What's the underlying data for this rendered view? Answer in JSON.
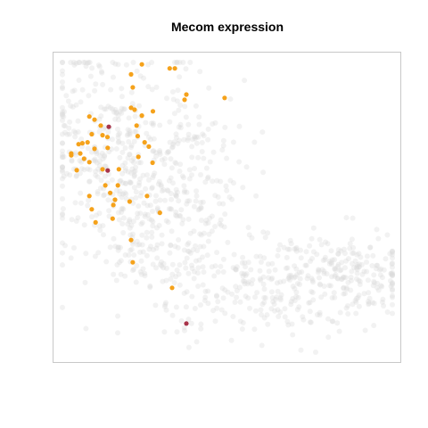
{
  "chart_data": {
    "type": "scatter",
    "title": "Mecom expression",
    "xlabel": "",
    "ylabel": "",
    "grid": false,
    "axes_visible": false,
    "xlim": [
      0,
      100
    ],
    "ylim": [
      0,
      100
    ],
    "colors": {
      "background_point": "#d9d9d9",
      "expressed": "#f5a21b",
      "high": "#a8344a",
      "frame": "#c8c8c8"
    },
    "series": [
      {
        "role": "expressed",
        "x": [
          25.4,
          33.4,
          34.9,
          22.3,
          22.8,
          38.2,
          37.7,
          49.2,
          22.3,
          10.3,
          11.8,
          23.3,
          25.4,
          28.6,
          23.9,
          13.6,
          11.0,
          14.1,
          8.3,
          9.8,
          15.5,
          24.2,
          26.2,
          27.4,
          11.8,
          5.1,
          5.1,
          7.7,
          7.2,
          15.6,
          8.8,
          10.3,
          18.8,
          24.4,
          28.5,
          6.7,
          14.1,
          14.9,
          18.5,
          16.3,
          10.3,
          17.7,
          17.2,
          26.9,
          21.9,
          11.0,
          17.0,
          12.1,
          30.6,
          22.3,
          22.8,
          34.1
        ],
        "y": [
          96.2,
          94.9,
          94.9,
          93.0,
          88.8,
          86.5,
          84.8,
          85.4,
          82.2,
          79.4,
          78.4,
          81.6,
          79.7,
          81.1,
          76.5,
          76.5,
          73.7,
          73.4,
          70.8,
          71.1,
          72.8,
          73.1,
          71.1,
          69.7,
          69.0,
          67.5,
          66.9,
          67.5,
          70.5,
          69.3,
          65.8,
          64.7,
          62.4,
          66.4,
          64.5,
          62.1,
          62.4,
          57.2,
          57.2,
          54.8,
          53.8,
          52.6,
          50.9,
          53.8,
          52.0,
          49.5,
          46.5,
          45.3,
          48.4,
          39.6,
          32.4,
          24.2
        ]
      },
      {
        "role": "high",
        "x": [
          15.9,
          15.6,
          38.2
        ],
        "y": [
          76.1,
          62.0,
          12.7
        ]
      }
    ]
  }
}
